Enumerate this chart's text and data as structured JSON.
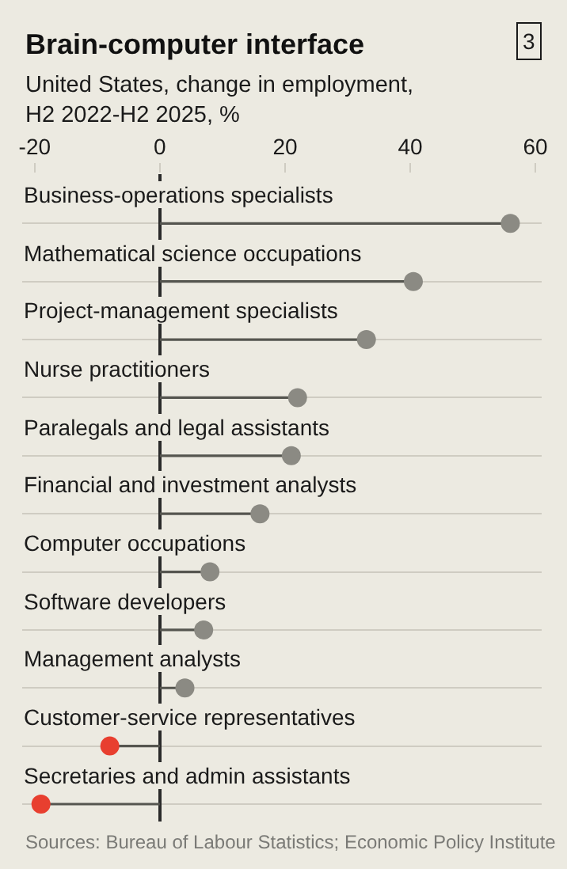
{
  "chart_data": {
    "type": "lollipop",
    "orientation": "horizontal",
    "title": "Brain-computer interface",
    "subtitle": "United States, change in employment,\nH2 2022-H2 2025, %",
    "categories": [
      "Business-operations specialists",
      "Mathematical science occupations",
      "Project-management specialists",
      "Nurse practitioners",
      "Paralegals and legal assistants",
      "Financial and investment analysts",
      "Computer occupations",
      "Software developers",
      "Management analysts",
      "Customer-service representatives",
      "Secretaries and admin assistants"
    ],
    "values": [
      56,
      40.5,
      33,
      22,
      21,
      16,
      8,
      7,
      4,
      -8,
      -19
    ],
    "colors": [
      "#8b8a83",
      "#8b8a83",
      "#8b8a83",
      "#8b8a83",
      "#8b8a83",
      "#8b8a83",
      "#8b8a83",
      "#8b8a83",
      "#8b8a83",
      "#e83f2f",
      "#e83f2f"
    ],
    "xlim": [
      -22,
      61
    ],
    "xticks": [
      -20,
      0,
      20,
      40,
      60
    ],
    "grid": "y",
    "marker": "circle",
    "annotations": [
      "3",
      "Sources: Bureau of Labour Statistics; Economic Policy Institute"
    ]
  }
}
